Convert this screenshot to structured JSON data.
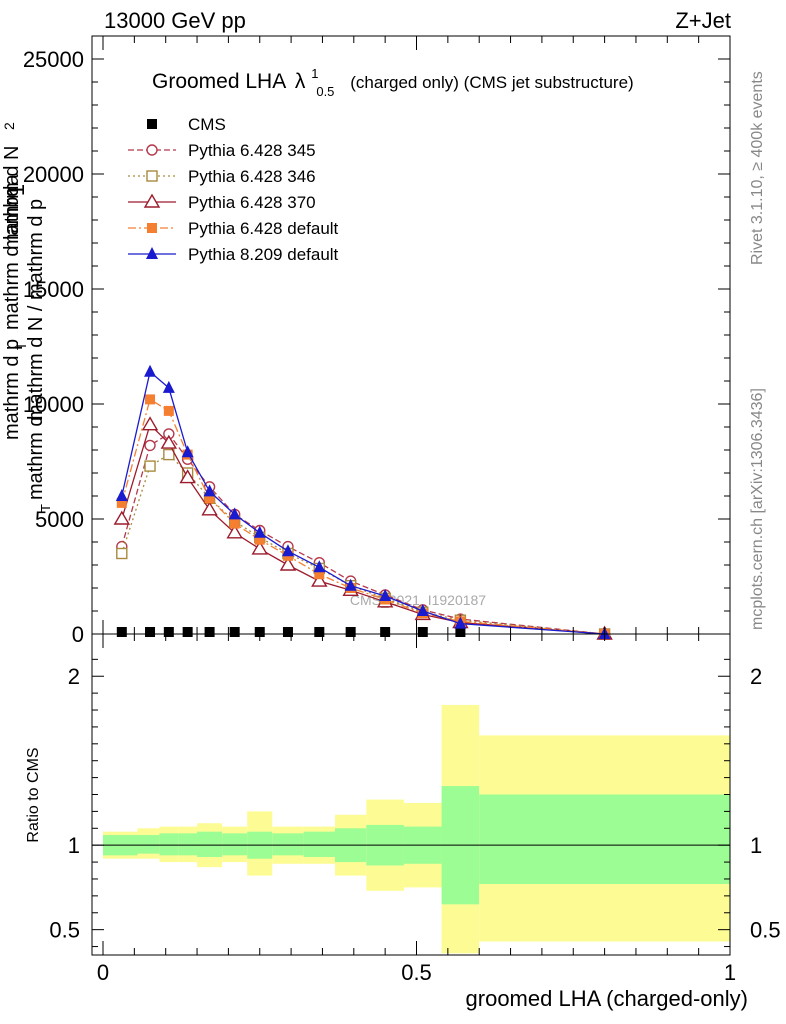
{
  "header": {
    "energy": "13000 GeV pp",
    "process": "Z+Jet",
    "side_top": "Rivet 3.1.10, ≥ 400k events",
    "side_bottom": "mcplots.cern.ch [arXiv:1306.3436]",
    "watermark": "CMS_2021_I1920187"
  },
  "chart_data": [
    {
      "type": "line",
      "title": "Groomed LHA",
      "title_symbol": "λ",
      "title_sup": "1",
      "title_sub": "0.5",
      "title_suffix": "(charged only) (CMS jet substructure)",
      "ylabel_lines": [
        "1",
        "mathrm d N / mathrm d p",
        "T",
        "mathrm d",
        "2",
        "mathrm d",
        "N",
        "mathrm d p",
        "T",
        "mathrm d lambda"
      ],
      "ylim": [
        0,
        26000
      ],
      "yticks": [
        0,
        5000,
        10000,
        15000,
        20000,
        25000
      ],
      "ytick_labels": [
        "0",
        "5000",
        "10000",
        "15000",
        "20000",
        "25000"
      ],
      "xlim": [
        0,
        1
      ],
      "x": [
        0.03,
        0.075,
        0.105,
        0.135,
        0.17,
        0.21,
        0.25,
        0.295,
        0.345,
        0.395,
        0.45,
        0.51,
        0.57,
        0.8
      ],
      "series": [
        {
          "name": "CMS",
          "color": "#000000",
          "marker": "square-filled",
          "dash": "none",
          "values": [
            0,
            0,
            0,
            0,
            0,
            0,
            0,
            0,
            0,
            0,
            0,
            0,
            0,
            null
          ]
        },
        {
          "name": "Pythia 6.428 345",
          "color": "#b5384b",
          "marker": "circle-open",
          "dash": "6,3",
          "values": [
            3800,
            8200,
            8700,
            7600,
            6400,
            5200,
            4500,
            3800,
            3100,
            2300,
            1700,
            1050,
            650,
            0
          ]
        },
        {
          "name": "Pythia 6.428 346",
          "color": "#a78a3e",
          "marker": "square-open",
          "dash": "2,3",
          "values": [
            3500,
            7300,
            7800,
            7000,
            5900,
            4900,
            4200,
            3500,
            2850,
            2100,
            1550,
            950,
            600,
            0
          ]
        },
        {
          "name": "Pythia 6.428 370",
          "color": "#9c1b2c",
          "marker": "triangle-open",
          "dash": "none",
          "values": [
            5000,
            9100,
            8300,
            6800,
            5400,
            4400,
            3700,
            3000,
            2300,
            1900,
            1400,
            850,
            500,
            0
          ]
        },
        {
          "name": "Pythia 6.428 default",
          "color": "#f57f31",
          "marker": "square-filled",
          "dash": "8,3,2,3",
          "values": [
            5700,
            10200,
            9700,
            7800,
            5900,
            4800,
            4100,
            3400,
            2600,
            2000,
            1500,
            900,
            550,
            0
          ]
        },
        {
          "name": "Pythia 8.209 default",
          "color": "#1a1acf",
          "marker": "triangle-filled",
          "dash": "none",
          "values": [
            6000,
            11400,
            10700,
            7900,
            6200,
            5200,
            4400,
            3600,
            2900,
            2100,
            1650,
            1000,
            450,
            0
          ]
        }
      ]
    },
    {
      "type": "area",
      "ylabel": "Ratio to CMS",
      "xlabel": "groomed LHA (charged-only)",
      "ylim": [
        0.35,
        2.25
      ],
      "yticks": [
        0.5,
        1,
        2
      ],
      "ytick_labels": [
        "0.5",
        "1",
        "2"
      ],
      "xlim": [
        0,
        1
      ],
      "xticks": [
        0,
        0.5,
        1
      ],
      "xtick_labels": [
        "0",
        "0.5",
        "1"
      ],
      "bin_edges": [
        0.0,
        0.055,
        0.09,
        0.12,
        0.15,
        0.19,
        0.23,
        0.27,
        0.32,
        0.37,
        0.42,
        0.48,
        0.54,
        0.6,
        1.0
      ],
      "green_band": [
        [
          0.94,
          1.06
        ],
        [
          0.95,
          1.06
        ],
        [
          0.94,
          1.07
        ],
        [
          0.94,
          1.07
        ],
        [
          0.93,
          1.08
        ],
        [
          0.94,
          1.07
        ],
        [
          0.92,
          1.08
        ],
        [
          0.94,
          1.07
        ],
        [
          0.93,
          1.08
        ],
        [
          0.9,
          1.1
        ],
        [
          0.88,
          1.12
        ],
        [
          0.89,
          1.11
        ],
        [
          0.65,
          1.35
        ],
        [
          0.77,
          1.3
        ]
      ],
      "yellow_band": [
        [
          0.92,
          1.08
        ],
        [
          0.92,
          1.1
        ],
        [
          0.9,
          1.11
        ],
        [
          0.9,
          1.11
        ],
        [
          0.87,
          1.13
        ],
        [
          0.9,
          1.11
        ],
        [
          0.82,
          1.2
        ],
        [
          0.89,
          1.11
        ],
        [
          0.89,
          1.11
        ],
        [
          0.82,
          1.18
        ],
        [
          0.73,
          1.27
        ],
        [
          0.75,
          1.25
        ],
        [
          0.36,
          1.83
        ],
        [
          0.43,
          1.65
        ]
      ]
    }
  ]
}
